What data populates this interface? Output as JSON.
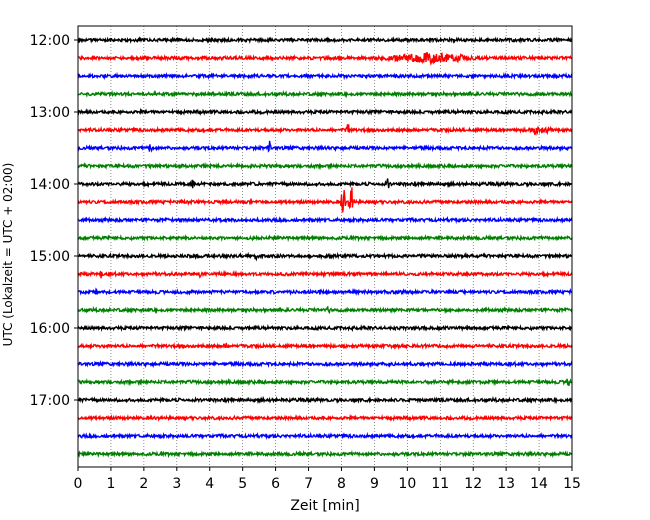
{
  "chart_data": {
    "type": "line",
    "xlabel": "Zeit  [min]",
    "ylabel": "UTC (Lokalzeit = UTC + 02:00)",
    "xlim": [
      0,
      15
    ],
    "x_ticks": [
      0,
      1,
      2,
      3,
      4,
      5,
      6,
      7,
      8,
      9,
      10,
      11,
      12,
      13,
      14,
      15
    ],
    "x_tick_labels": [
      "0",
      "1",
      "2",
      "3",
      "4",
      "5",
      "6",
      "7",
      "8",
      "9",
      "10",
      "11",
      "12",
      "13",
      "14",
      "15"
    ],
    "y_ticks": [
      "12:00",
      "13:00",
      "14:00",
      "15:00",
      "16:00",
      "17:00"
    ],
    "grid": "vertical dotted",
    "legend": "none",
    "trace_minutes": 15,
    "trace_colors": [
      "#000000",
      "#ff0000",
      "#0000ff",
      "#008000"
    ],
    "traces": [
      {
        "start": "12:00",
        "color": "#000000",
        "events": []
      },
      {
        "start": "12:15",
        "color": "#ff0000",
        "events": [
          {
            "min": 10.7,
            "amp": 0.45,
            "dur": 1.6
          }
        ]
      },
      {
        "start": "12:30",
        "color": "#0000ff",
        "events": []
      },
      {
        "start": "12:45",
        "color": "#008000",
        "events": []
      },
      {
        "start": "13:00",
        "color": "#000000",
        "events": []
      },
      {
        "start": "13:15",
        "color": "#ff0000",
        "events": [
          {
            "min": 8.2,
            "amp": 0.5,
            "dur": 0.1
          },
          {
            "min": 14.0,
            "amp": 0.3,
            "dur": 0.5
          }
        ]
      },
      {
        "start": "13:30",
        "color": "#0000ff",
        "events": [
          {
            "min": 2.2,
            "amp": 0.75,
            "dur": 0.06
          },
          {
            "min": 5.8,
            "amp": 0.9,
            "dur": 0.06
          }
        ]
      },
      {
        "start": "13:45",
        "color": "#008000",
        "events": []
      },
      {
        "start": "14:00",
        "color": "#000000",
        "events": [
          {
            "min": 3.5,
            "amp": 0.6,
            "dur": 0.06
          },
          {
            "min": 9.4,
            "amp": 0.7,
            "dur": 0.06
          }
        ]
      },
      {
        "start": "14:15",
        "color": "#ff0000",
        "events": [
          {
            "min": 8.05,
            "amp": 1.9,
            "dur": 0.08
          },
          {
            "min": 8.3,
            "amp": 1.9,
            "dur": 0.1
          }
        ]
      },
      {
        "start": "14:30",
        "color": "#0000ff",
        "events": []
      },
      {
        "start": "14:45",
        "color": "#008000",
        "events": []
      },
      {
        "start": "15:00",
        "color": "#000000",
        "events": [
          {
            "min": 5.4,
            "amp": 0.3,
            "dur": 0.05
          }
        ]
      },
      {
        "start": "15:15",
        "color": "#ff0000",
        "events": [
          {
            "min": 0.7,
            "amp": 0.3,
            "dur": 0.05
          },
          {
            "min": 3.7,
            "amp": 0.25,
            "dur": 0.05
          }
        ]
      },
      {
        "start": "15:30",
        "color": "#0000ff",
        "events": [
          {
            "min": 0.55,
            "amp": 0.25,
            "dur": 0.05
          }
        ]
      },
      {
        "start": "15:45",
        "color": "#008000",
        "events": [
          {
            "min": 7.6,
            "amp": 0.3,
            "dur": 0.05
          }
        ]
      },
      {
        "start": "16:00",
        "color": "#000000",
        "events": []
      },
      {
        "start": "16:15",
        "color": "#ff0000",
        "events": [
          {
            "min": 0.8,
            "amp": 0.3,
            "dur": 0.05
          },
          {
            "min": 4.5,
            "amp": 0.25,
            "dur": 0.05
          }
        ]
      },
      {
        "start": "16:30",
        "color": "#0000ff",
        "events": []
      },
      {
        "start": "16:45",
        "color": "#008000",
        "events": [
          {
            "min": 14.9,
            "amp": 0.8,
            "dur": 0.08
          }
        ]
      },
      {
        "start": "17:00",
        "color": "#000000",
        "events": []
      },
      {
        "start": "17:15",
        "color": "#ff0000",
        "events": []
      },
      {
        "start": "17:30",
        "color": "#0000ff",
        "events": []
      },
      {
        "start": "17:45",
        "color": "#008000",
        "events": []
      }
    ]
  }
}
